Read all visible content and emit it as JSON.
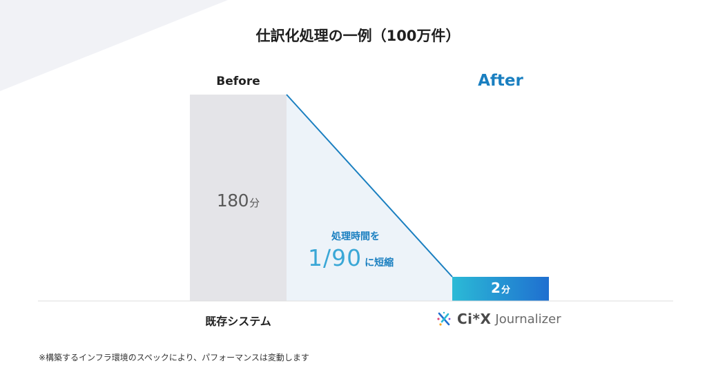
{
  "chart_data": {
    "type": "bar",
    "title": "仕訳化処理の一例（100万件）",
    "categories": [
      "既存システム",
      "Ci*X Journalizer"
    ],
    "stage_labels": [
      "Before",
      "After"
    ],
    "values": [
      180,
      2
    ],
    "unit": "分",
    "value_labels": [
      "180",
      "2"
    ],
    "annotation": {
      "line1": "処理時間を",
      "ratio": "1/90",
      "suffix": "に短縮"
    },
    "ylim": [
      0,
      180
    ],
    "grid": false,
    "legend": "none"
  },
  "logo": {
    "brand": "Ci*X",
    "product": "Journalizer"
  },
  "footnote": "※構築するインフラ環境のスペックにより、パフォーマンスは変動します",
  "colors": {
    "before_bar": "#e4e4e8",
    "after_bar_start": "#2bbad6",
    "after_bar_end": "#1f6fd0",
    "accent": "#1a7fc0",
    "trend_line": "#1a7fc0",
    "trend_fill": "#edf3f9",
    "corner": "#f1f2f6",
    "baseline": "#dddddd"
  }
}
